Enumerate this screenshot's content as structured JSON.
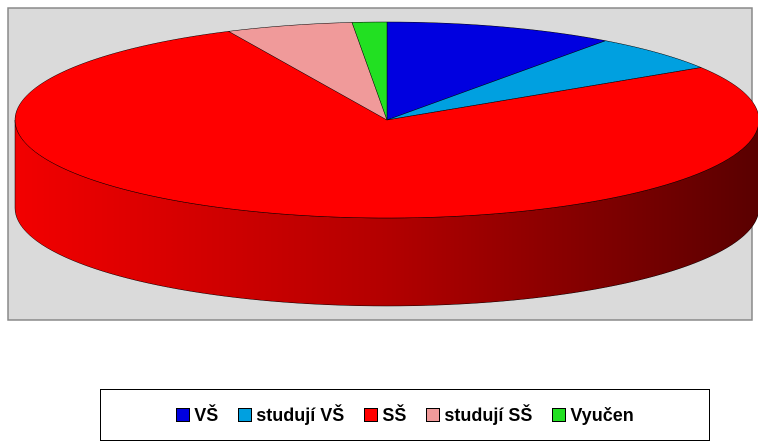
{
  "chart_data": {
    "type": "pie",
    "categories": [
      "VŠ",
      "studují VŠ",
      "SŠ",
      "studují SŠ",
      "Vyučen"
    ],
    "values": [
      10,
      6,
      77,
      5.5,
      1.5
    ],
    "colors": [
      "#0000e0",
      "#00a0e0",
      "#ff0000",
      "#f09a9a",
      "#22e022"
    ],
    "legend": "bottom"
  }
}
